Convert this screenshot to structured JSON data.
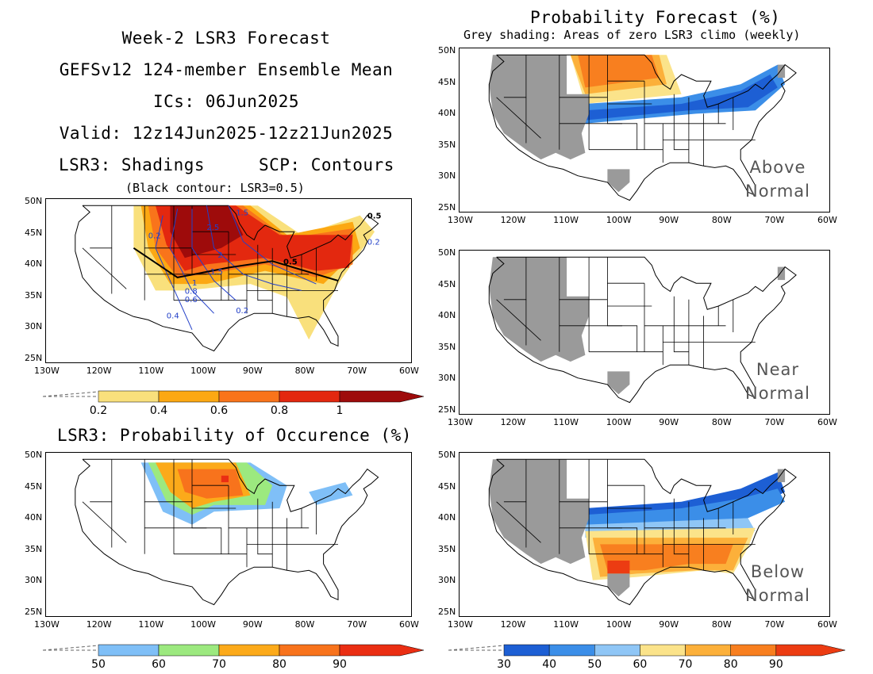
{
  "left_title": {
    "line1": "Week-2 LSR3 Forecast",
    "line2": "GEFSv12 124-member Ensemble Mean",
    "line3": "ICs: 06Jun2025",
    "line4": "Valid: 12z14Jun2025-12z21Jun2025",
    "line5a": "LSR3: Shadings",
    "line5b": "SCP: Contours",
    "note": "(Black contour: LSR3=0.5)"
  },
  "right_title": {
    "title": "Probability Forecast (%)",
    "subtitle": "Grey shading: Areas of zero LSR3 climo (weekly)"
  },
  "occurrence_title": "LSR3: Probability of Occurence (%)",
  "lat_labels": [
    "50N",
    "45N",
    "40N",
    "35N",
    "30N",
    "25N"
  ],
  "lon_labels": [
    "130W",
    "120W",
    "110W",
    "100W",
    "90W",
    "80W",
    "70W",
    "60W"
  ],
  "panel_labels": {
    "above": [
      "Above",
      "Normal"
    ],
    "near": [
      "Near",
      "Normal"
    ],
    "below": [
      "Below",
      "Normal"
    ]
  },
  "scp_contour_labels": [
    "2.5",
    "2",
    "1.5",
    "1",
    "0.8",
    "0.6",
    "0.4",
    "0.2",
    "0.2",
    "0.2",
    "1.5",
    "0.5",
    "0.5"
  ],
  "colorbars": {
    "lsr3": {
      "labels": [
        "0.2",
        "0.4",
        "0.6",
        "0.8",
        "1"
      ],
      "colors": [
        "#f9e07c",
        "#fca813",
        "#f9741b",
        "#e3280f",
        "#9e0b0b"
      ]
    },
    "occurrence": {
      "labels": [
        "50",
        "60",
        "70",
        "80",
        "90"
      ],
      "colors": [
        "#7fbff7",
        "#9ce97f",
        "#fcaa1a",
        "#f8731c",
        "#ea2e13"
      ]
    },
    "probability": {
      "labels": [
        "30",
        "40",
        "50",
        "60",
        "70",
        "80",
        "90"
      ],
      "colors": [
        "#1d5fd4",
        "#3b8ee8",
        "#8fc6f6",
        "#fbe38a",
        "#fcb03a",
        "#f87f1f",
        "#ec3c12"
      ]
    }
  },
  "colors": {
    "grey_zero_climo": "#9a9a9a",
    "scp_contour": "#2340c8",
    "lsr3_contour": "#000000"
  }
}
